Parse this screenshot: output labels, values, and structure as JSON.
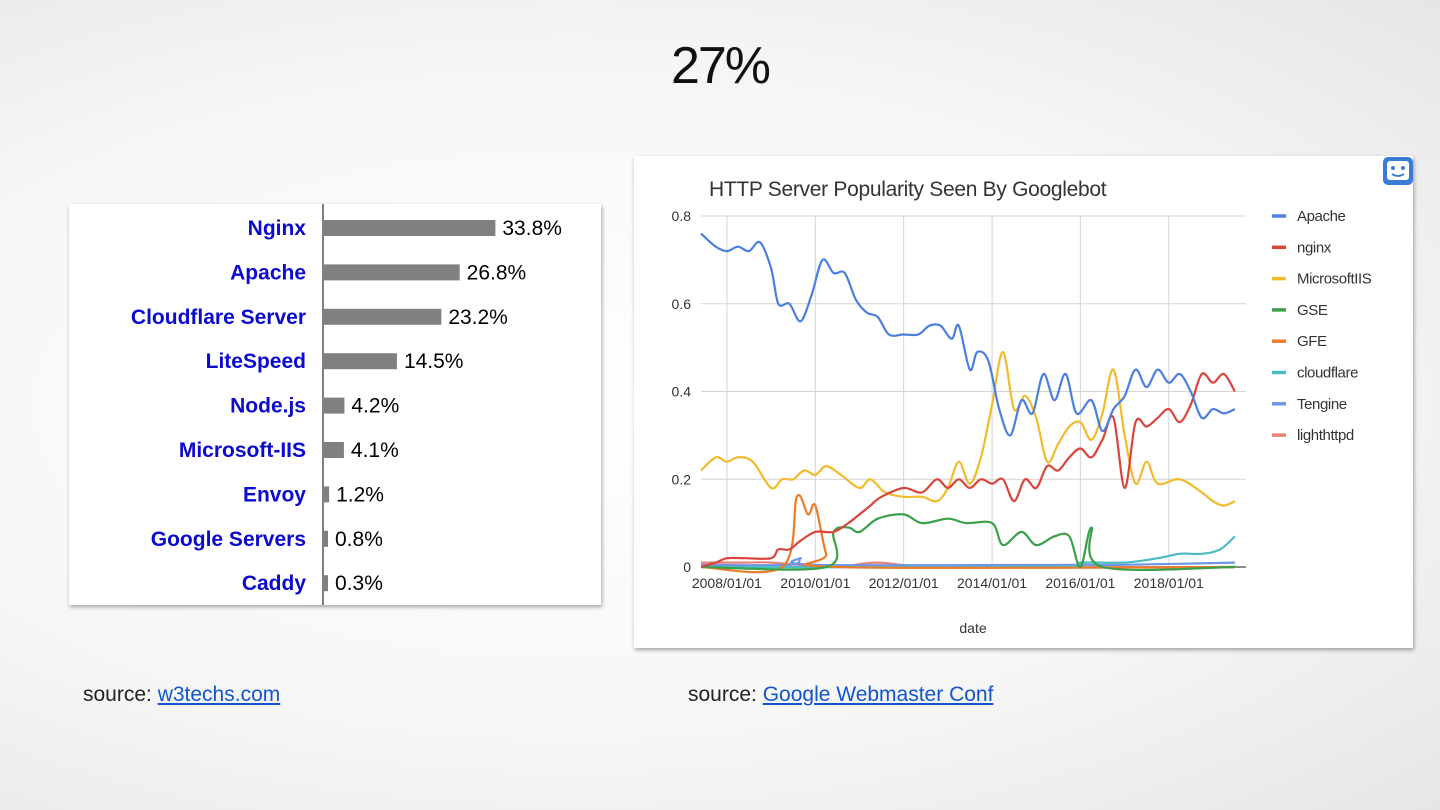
{
  "slide": {
    "title": "27%"
  },
  "sources": [
    {
      "prefix": "source: ",
      "link_text": "w3techs.com"
    },
    {
      "prefix": "source: ",
      "link_text": "Google Webmaster Conf"
    }
  ],
  "assistant_icon": "bot-face-icon",
  "colors": {
    "bar_label": "#0a0ad0",
    "bar_fill": "#808080",
    "link": "#1155cc"
  },
  "chart_data": [
    {
      "type": "bar",
      "orientation": "horizontal",
      "categories": [
        "Nginx",
        "Apache",
        "Cloudflare Server",
        "LiteSpeed",
        "Node.js",
        "Microsoft-IIS",
        "Envoy",
        "Google Servers",
        "Caddy"
      ],
      "values": [
        33.8,
        26.8,
        23.2,
        14.5,
        4.2,
        4.1,
        1.2,
        0.8,
        0.3
      ],
      "value_labels": [
        "33.8%",
        "26.8%",
        "23.2%",
        "14.5%",
        "4.2%",
        "4.1%",
        "1.2%",
        "0.8%",
        "0.3%"
      ],
      "unit": "%"
    },
    {
      "type": "line",
      "title": "HTTP Server Popularity Seen By Googlebot",
      "xlabel": "date",
      "ylabel": "",
      "x_ticks": [
        "2008/01/01",
        "2010/01/01",
        "2012/01/01",
        "2014/01/01",
        "2016/01/01",
        "2018/01/01"
      ],
      "y_ticks": [
        "0",
        "0.2",
        "0.4",
        "0.6",
        "0.8"
      ],
      "xlim": [
        "2007/06/01",
        "2019/10/01"
      ],
      "ylim": [
        0,
        0.8
      ],
      "grid": true,
      "legend_position": "right",
      "series": [
        {
          "name": "Apache",
          "color": "#4a7fe0",
          "points": [
            [
              "2007/06/01",
              0.76
            ],
            [
              "2007/10/01",
              0.73
            ],
            [
              "2008/01/01",
              0.72
            ],
            [
              "2008/04/01",
              0.73
            ],
            [
              "2008/07/01",
              0.72
            ],
            [
              "2008/10/01",
              0.74
            ],
            [
              "2009/01/01",
              0.68
            ],
            [
              "2009/03/01",
              0.6
            ],
            [
              "2009/06/01",
              0.6
            ],
            [
              "2009/09/01",
              0.56
            ],
            [
              "2009/12/01",
              0.62
            ],
            [
              "2010/03/01",
              0.7
            ],
            [
              "2010/06/01",
              0.67
            ],
            [
              "2010/09/01",
              0.67
            ],
            [
              "2010/12/01",
              0.61
            ],
            [
              "2011/03/01",
              0.58
            ],
            [
              "2011/06/01",
              0.57
            ],
            [
              "2011/09/01",
              0.53
            ],
            [
              "2012/01/01",
              0.53
            ],
            [
              "2012/05/01",
              0.53
            ],
            [
              "2012/08/01",
              0.55
            ],
            [
              "2012/11/01",
              0.55
            ],
            [
              "2013/02/01",
              0.52
            ],
            [
              "2013/04/01",
              0.55
            ],
            [
              "2013/07/01",
              0.45
            ],
            [
              "2013/09/01",
              0.49
            ],
            [
              "2013/12/01",
              0.47
            ],
            [
              "2014/03/01",
              0.36
            ],
            [
              "2014/06/01",
              0.3
            ],
            [
              "2014/09/01",
              0.38
            ],
            [
              "2014/12/01",
              0.35
            ],
            [
              "2015/03/01",
              0.44
            ],
            [
              "2015/06/01",
              0.38
            ],
            [
              "2015/09/01",
              0.44
            ],
            [
              "2015/12/01",
              0.35
            ],
            [
              "2016/04/01",
              0.38
            ],
            [
              "2016/07/01",
              0.31
            ],
            [
              "2016/10/01",
              0.36
            ],
            [
              "2017/01/01",
              0.39
            ],
            [
              "2017/04/01",
              0.45
            ],
            [
              "2017/07/01",
              0.41
            ],
            [
              "2017/10/01",
              0.45
            ],
            [
              "2018/01/01",
              0.42
            ],
            [
              "2018/04/01",
              0.44
            ],
            [
              "2018/07/01",
              0.4
            ],
            [
              "2018/10/01",
              0.34
            ],
            [
              "2019/01/01",
              0.36
            ],
            [
              "2019/04/01",
              0.35
            ],
            [
              "2019/07/01",
              0.36
            ]
          ]
        },
        {
          "name": "nginx",
          "color": "#d9443b",
          "points": [
            [
              "2007/06/01",
              0.0
            ],
            [
              "2007/10/01",
              0.01
            ],
            [
              "2008/01/01",
              0.02
            ],
            [
              "2008/06/01",
              0.02
            ],
            [
              "2009/01/01",
              0.02
            ],
            [
              "2009/03/01",
              0.04
            ],
            [
              "2009/06/01",
              0.04
            ],
            [
              "2009/09/01",
              0.06
            ],
            [
              "2010/01/01",
              0.08
            ],
            [
              "2010/06/01",
              0.08
            ],
            [
              "2010/10/01",
              0.1
            ],
            [
              "2011/01/01",
              0.12
            ],
            [
              "2011/04/01",
              0.14
            ],
            [
              "2011/07/01",
              0.16
            ],
            [
              "2012/01/01",
              0.18
            ],
            [
              "2012/06/01",
              0.17
            ],
            [
              "2012/10/01",
              0.2
            ],
            [
              "2013/01/01",
              0.18
            ],
            [
              "2013/04/01",
              0.2
            ],
            [
              "2013/07/01",
              0.18
            ],
            [
              "2013/10/01",
              0.2
            ],
            [
              "2014/01/01",
              0.19
            ],
            [
              "2014/04/01",
              0.2
            ],
            [
              "2014/07/01",
              0.15
            ],
            [
              "2014/10/01",
              0.2
            ],
            [
              "2015/01/01",
              0.18
            ],
            [
              "2015/04/01",
              0.23
            ],
            [
              "2015/07/01",
              0.22
            ],
            [
              "2015/10/01",
              0.25
            ],
            [
              "2016/01/01",
              0.27
            ],
            [
              "2016/04/01",
              0.25
            ],
            [
              "2016/07/01",
              0.29
            ],
            [
              "2016/10/01",
              0.34
            ],
            [
              "2017/01/01",
              0.18
            ],
            [
              "2017/04/01",
              0.33
            ],
            [
              "2017/07/01",
              0.32
            ],
            [
              "2017/10/01",
              0.34
            ],
            [
              "2018/01/01",
              0.36
            ],
            [
              "2018/04/01",
              0.33
            ],
            [
              "2018/07/01",
              0.37
            ],
            [
              "2018/10/01",
              0.44
            ],
            [
              "2019/01/01",
              0.42
            ],
            [
              "2019/04/01",
              0.44
            ],
            [
              "2019/07/01",
              0.4
            ]
          ]
        },
        {
          "name": "MicrosoftIIS",
          "color": "#f2bb2b",
          "points": [
            [
              "2007/06/01",
              0.22
            ],
            [
              "2007/10/01",
              0.25
            ],
            [
              "2008/01/01",
              0.24
            ],
            [
              "2008/04/01",
              0.25
            ],
            [
              "2008/08/01",
              0.24
            ],
            [
              "2009/01/01",
              0.18
            ],
            [
              "2009/04/01",
              0.2
            ],
            [
              "2009/07/01",
              0.2
            ],
            [
              "2009/10/01",
              0.22
            ],
            [
              "2010/01/01",
              0.21
            ],
            [
              "2010/04/01",
              0.23
            ],
            [
              "2010/08/01",
              0.21
            ],
            [
              "2011/01/01",
              0.18
            ],
            [
              "2011/04/01",
              0.2
            ],
            [
              "2011/08/01",
              0.17
            ],
            [
              "2012/01/01",
              0.16
            ],
            [
              "2012/06/01",
              0.16
            ],
            [
              "2012/10/01",
              0.15
            ],
            [
              "2013/01/01",
              0.18
            ],
            [
              "2013/04/01",
              0.24
            ],
            [
              "2013/07/01",
              0.19
            ],
            [
              "2013/10/01",
              0.25
            ],
            [
              "2014/01/01",
              0.37
            ],
            [
              "2014/04/01",
              0.49
            ],
            [
              "2014/07/01",
              0.36
            ],
            [
              "2014/10/01",
              0.39
            ],
            [
              "2015/01/01",
              0.34
            ],
            [
              "2015/04/01",
              0.24
            ],
            [
              "2015/07/01",
              0.28
            ],
            [
              "2015/10/01",
              0.32
            ],
            [
              "2016/01/01",
              0.33
            ],
            [
              "2016/04/01",
              0.29
            ],
            [
              "2016/07/01",
              0.35
            ],
            [
              "2016/10/01",
              0.45
            ],
            [
              "2017/01/01",
              0.3
            ],
            [
              "2017/04/01",
              0.19
            ],
            [
              "2017/07/01",
              0.24
            ],
            [
              "2017/10/01",
              0.19
            ],
            [
              "2018/04/01",
              0.2
            ],
            [
              "2018/10/01",
              0.17
            ],
            [
              "2019/01/01",
              0.15
            ],
            [
              "2019/04/01",
              0.14
            ],
            [
              "2019/07/01",
              0.15
            ]
          ]
        },
        {
          "name": "GSE",
          "color": "#3aa04a",
          "points": [
            [
              "2007/06/01",
              0.0
            ],
            [
              "2010/04/01",
              0.0
            ],
            [
              "2010/06/01",
              0.08
            ],
            [
              "2010/10/01",
              0.09
            ],
            [
              "2011/01/01",
              0.08
            ],
            [
              "2011/06/01",
              0.11
            ],
            [
              "2012/01/01",
              0.12
            ],
            [
              "2012/06/01",
              0.1
            ],
            [
              "2013/01/01",
              0.11
            ],
            [
              "2013/06/01",
              0.1
            ],
            [
              "2014/01/01",
              0.1
            ],
            [
              "2014/04/01",
              0.05
            ],
            [
              "2014/09/01",
              0.08
            ],
            [
              "2015/01/01",
              0.05
            ],
            [
              "2015/06/01",
              0.07
            ],
            [
              "2015/10/01",
              0.07
            ],
            [
              "2016/01/01",
              0.0
            ],
            [
              "2016/04/01",
              0.09
            ],
            [
              "2016/07/01",
              0.0
            ],
            [
              "2019/07/01",
              0.0
            ]
          ]
        },
        {
          "name": "GFE",
          "color": "#ec7b2b",
          "points": [
            [
              "2007/06/01",
              0.0
            ],
            [
              "2009/04/01",
              0.0
            ],
            [
              "2009/08/01",
              0.16
            ],
            [
              "2009/11/01",
              0.12
            ],
            [
              "2010/01/01",
              0.14
            ],
            [
              "2010/04/01",
              0.03
            ],
            [
              "2010/07/01",
              0.0
            ],
            [
              "2019/07/01",
              0.0
            ]
          ]
        },
        {
          "name": "cloudflare",
          "color": "#4cbcc4",
          "points": [
            [
              "2007/06/01",
              0.0
            ],
            [
              "2015/04/01",
              0.0
            ],
            [
              "2016/01/01",
              0.01
            ],
            [
              "2017/01/01",
              0.01
            ],
            [
              "2017/10/01",
              0.02
            ],
            [
              "2018/04/01",
              0.03
            ],
            [
              "2018/10/01",
              0.03
            ],
            [
              "2019/03/01",
              0.04
            ],
            [
              "2019/07/01",
              0.07
            ]
          ]
        },
        {
          "name": "Tengine",
          "color": "#6f95e6",
          "points": [
            [
              "2007/06/01",
              0.005
            ],
            [
              "2009/06/01",
              0.005
            ],
            [
              "2009/09/01",
              0.02
            ],
            [
              "2010/01/01",
              0.005
            ],
            [
              "2016/01/01",
              0.005
            ],
            [
              "2017/01/01",
              0.005
            ],
            [
              "2019/07/01",
              0.01
            ]
          ]
        },
        {
          "name": "lighthttpd",
          "color": "#e58377",
          "points": [
            [
              "2007/06/01",
              0.01
            ],
            [
              "2008/06/01",
              0.01
            ],
            [
              "2009/01/01",
              0.01
            ],
            [
              "2010/06/01",
              0.0
            ],
            [
              "2011/06/01",
              0.01
            ],
            [
              "2013/01/01",
              0.0
            ],
            [
              "2019/07/01",
              0.0
            ]
          ]
        }
      ]
    }
  ]
}
